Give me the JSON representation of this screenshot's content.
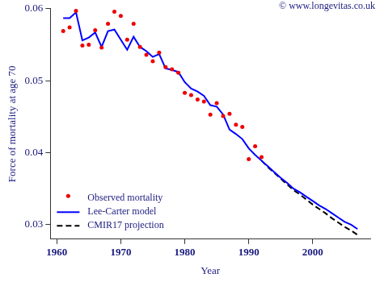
{
  "chart_data": {
    "type": "line",
    "annotation": "© www.longevitas.co.uk",
    "x_label": "Year",
    "y_label": "Force of mortality at age 70",
    "xlim": [
      1959,
      2009
    ],
    "xticks": [
      1960,
      1970,
      1980,
      1990,
      2000
    ],
    "ylim": [
      0.028,
      0.06
    ],
    "yticks": [
      0.03,
      0.04,
      0.05,
      0.06
    ],
    "grid": false,
    "legend": "bottom-left",
    "series": [
      {
        "name": "Observed mortality",
        "type": "scatter",
        "marker": "circle",
        "color": "#ee0000",
        "x": [
          1961,
          1962,
          1963,
          1964,
          1965,
          1966,
          1967,
          1968,
          1969,
          1970,
          1971,
          1972,
          1973,
          1974,
          1975,
          1976,
          1977,
          1978,
          1979,
          1980,
          1981,
          1982,
          1983,
          1984,
          1985,
          1986,
          1987,
          1988,
          1989,
          1990,
          1991,
          1992
        ],
        "values": [
          0.0569,
          0.0574,
          0.0597,
          0.0549,
          0.055,
          0.057,
          0.0546,
          0.0579,
          0.0596,
          0.059,
          0.0557,
          0.0579,
          0.0547,
          0.0536,
          0.0527,
          0.0539,
          0.0519,
          0.0516,
          0.0511,
          0.0483,
          0.048,
          0.0474,
          0.0471,
          0.0453,
          0.0469,
          0.0451,
          0.0454,
          0.0439,
          0.0436,
          0.0391,
          0.0409,
          0.0394
        ]
      },
      {
        "name": "Lee-Carter model",
        "type": "line",
        "line_style": "solid",
        "color": "#0000ff",
        "x": [
          1961,
          1962,
          1963,
          1964,
          1965,
          1966,
          1967,
          1968,
          1969,
          1970,
          1971,
          1972,
          1973,
          1974,
          1975,
          1976,
          1977,
          1978,
          1979,
          1980,
          1981,
          1982,
          1983,
          1984,
          1985,
          1986,
          1987,
          1988,
          1989,
          1990,
          1991,
          1992,
          1993,
          1994,
          1995,
          1996,
          1997,
          1998,
          1999,
          2000,
          2001,
          2002,
          2003,
          2004,
          2005,
          2006,
          2007
        ],
        "values": [
          0.0587,
          0.0587,
          0.0595,
          0.0556,
          0.056,
          0.0567,
          0.0547,
          0.0569,
          0.0571,
          0.0557,
          0.0543,
          0.0561,
          0.0547,
          0.0541,
          0.0533,
          0.0537,
          0.0517,
          0.0515,
          0.0512,
          0.0498,
          0.0489,
          0.0485,
          0.0479,
          0.0466,
          0.0464,
          0.0453,
          0.0432,
          0.0426,
          0.0419,
          0.0406,
          0.0397,
          0.0389,
          0.0381,
          0.0373,
          0.0365,
          0.0358,
          0.035,
          0.0345,
          0.0339,
          0.0333,
          0.0327,
          0.0322,
          0.0316,
          0.031,
          0.0304,
          0.03,
          0.0294
        ]
      },
      {
        "name": "CMIR17 projection",
        "type": "line",
        "line_style": "dashed",
        "color": "#000000",
        "x": [
          1992,
          1993,
          1994,
          1995,
          1996,
          1997,
          1998,
          1999,
          2000,
          2001,
          2002,
          2003,
          2004,
          2005,
          2006,
          2007
        ],
        "values": [
          0.0389,
          0.038,
          0.0372,
          0.0364,
          0.0356,
          0.0348,
          0.0342,
          0.0335,
          0.0328,
          0.0322,
          0.0316,
          0.0309,
          0.0303,
          0.0297,
          0.0292,
          0.0286
        ]
      }
    ]
  }
}
